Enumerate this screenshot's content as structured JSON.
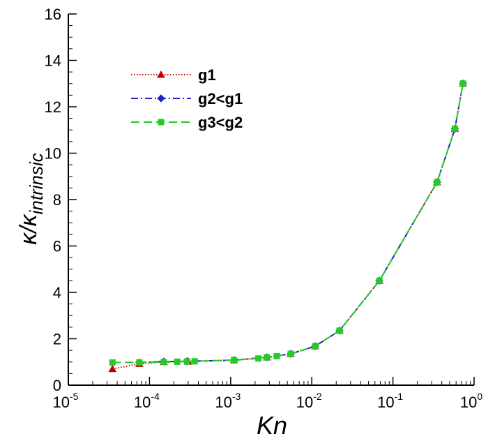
{
  "chart_data": {
    "type": "line",
    "x_scale": "log",
    "xlim": [
      1e-05,
      1
    ],
    "ylim": [
      0,
      16
    ],
    "xlabel": "Kn",
    "ylabel": {
      "main": "κ/κ",
      "subscript": "intrinsic"
    },
    "x_ticks": [
      {
        "base": "10",
        "exp": "-5",
        "value": 1e-05
      },
      {
        "base": "10",
        "exp": "-4",
        "value": 0.0001
      },
      {
        "base": "10",
        "exp": "-3",
        "value": 0.001
      },
      {
        "base": "10",
        "exp": "-2",
        "value": 0.01
      },
      {
        "base": "10",
        "exp": "-1",
        "value": 0.1
      },
      {
        "base": "10",
        "exp": "0",
        "value": 1
      }
    ],
    "y_ticks": [
      "0",
      "2",
      "4",
      "6",
      "8",
      "10",
      "12",
      "14",
      "16"
    ],
    "legend_position": "top-left",
    "series": [
      {
        "name": "g1",
        "color": "#c00000",
        "line_style": "dotted",
        "marker": "triangle",
        "x": [
          3.5e-05,
          7.5e-05,
          0.00015,
          0.0003,
          0.0011,
          0.0028,
          0.0055,
          0.011,
          0.022,
          0.068,
          0.35,
          0.58,
          0.73
        ],
        "y": [
          0.7,
          0.92,
          1.0,
          1.02,
          1.08,
          1.2,
          1.35,
          1.68,
          2.35,
          4.5,
          8.75,
          11.05,
          13.0
        ]
      },
      {
        "name": "g2<g1",
        "color": "#2222cc",
        "line_style": "dashdot",
        "marker": "diamond",
        "x": [
          7.5e-05,
          0.00015,
          0.00029,
          0.0011,
          0.0028,
          0.0055,
          0.011,
          0.022,
          0.068,
          0.35,
          0.58,
          0.73
        ],
        "y": [
          0.98,
          1.02,
          1.03,
          1.08,
          1.2,
          1.35,
          1.68,
          2.35,
          4.5,
          8.75,
          11.05,
          13.0
        ]
      },
      {
        "name": "g3<g2",
        "color": "#22cc22",
        "line_style": "dashed",
        "marker": "square",
        "x": [
          3.5e-05,
          7.5e-05,
          0.00015,
          0.00022,
          0.00029,
          0.00036,
          0.0011,
          0.0022,
          0.0028,
          0.0037,
          0.0055,
          0.011,
          0.022,
          0.068,
          0.35,
          0.58,
          0.73
        ],
        "y": [
          0.98,
          0.98,
          1.0,
          1.01,
          1.02,
          1.03,
          1.08,
          1.15,
          1.2,
          1.25,
          1.35,
          1.68,
          2.35,
          4.5,
          8.75,
          11.05,
          13.0
        ]
      }
    ]
  }
}
